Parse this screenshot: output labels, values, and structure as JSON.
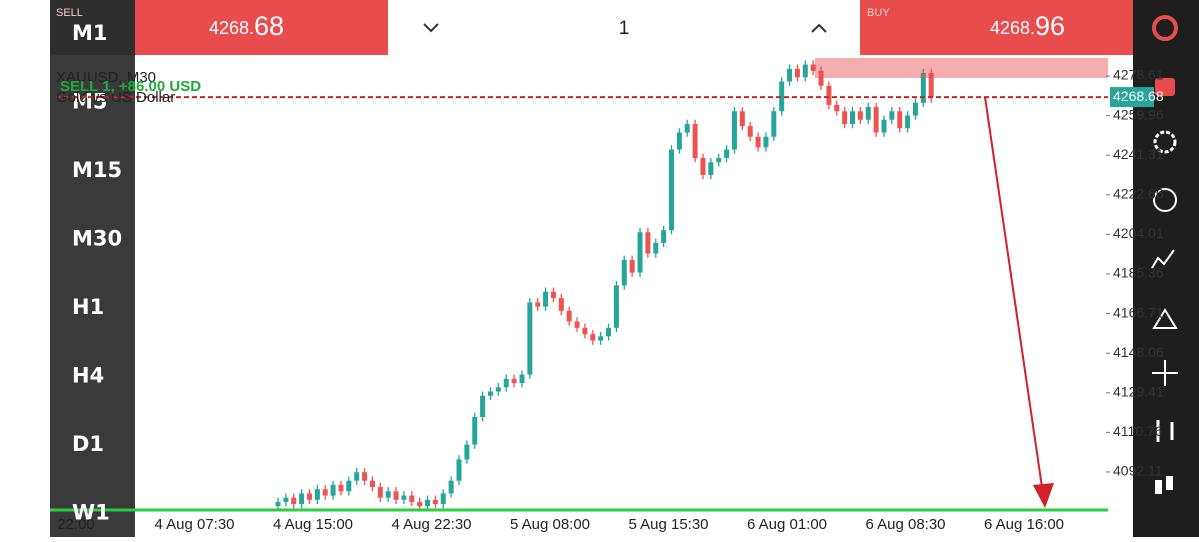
{
  "timeframes": [
    "M1",
    "M5",
    "M15",
    "M30",
    "H1",
    "H4",
    "D1",
    "W1"
  ],
  "sell": {
    "label": "SELL",
    "price_int": "4268.",
    "price_frac": "68"
  },
  "volume": "1",
  "buy": {
    "label": "BUY",
    "price_int": "4268.",
    "price_frac": "96"
  },
  "chart_data": {
    "type": "candlestick",
    "title": "XAUUSD, M30",
    "subtitle": "Gold vs US Dollar",
    "position_label": "SELL 1, +86.00 USD",
    "current_price": 4268.68,
    "current_price_label": "4268.68",
    "ylim": [
      4074.2,
      4288.5
    ],
    "yticks": [
      4278.61,
      4259.96,
      4241.31,
      4222.66,
      4204.01,
      4185.36,
      4166.71,
      4148.06,
      4129.41,
      4110.76,
      4092.11
    ],
    "xtick_labels": [
      "22:00",
      "4 Aug 07:30",
      "4 Aug 15:00",
      "4 Aug 22:30",
      "5 Aug 08:00",
      "5 Aug 15:30",
      "6 Aug 01:00",
      "6 Aug 08:30",
      "6 Aug 16:00"
    ],
    "up_color": "#26a69a",
    "down_color": "#ef5350",
    "candles": [
      [
        4076,
        4080,
        4074,
        4078
      ],
      [
        4078,
        4082,
        4076,
        4080
      ],
      [
        4080,
        4082,
        4075,
        4077
      ],
      [
        4077,
        4084,
        4075,
        4082
      ],
      [
        4082,
        4084,
        4077,
        4079
      ],
      [
        4079,
        4086,
        4077,
        4084
      ],
      [
        4084,
        4086,
        4079,
        4081
      ],
      [
        4081,
        4088,
        4079,
        4086
      ],
      [
        4086,
        4088,
        4081,
        4083
      ],
      [
        4083,
        4090,
        4081,
        4088
      ],
      [
        4088,
        4094,
        4086,
        4092
      ],
      [
        4092,
        4094,
        4086,
        4088
      ],
      [
        4088,
        4090,
        4083,
        4085
      ],
      [
        4085,
        4087,
        4078,
        4080
      ],
      [
        4080,
        4085,
        4078,
        4083
      ],
      [
        4083,
        4085,
        4077,
        4079
      ],
      [
        4079,
        4083,
        4077,
        4081
      ],
      [
        4081,
        4083,
        4076,
        4078
      ],
      [
        4078,
        4080,
        4074,
        4076
      ],
      [
        4076,
        4081,
        4074,
        4079
      ],
      [
        4079,
        4081,
        4075,
        4077
      ],
      [
        4077,
        4084,
        4075,
        4082
      ],
      [
        4082,
        4090,
        4080,
        4088
      ],
      [
        4088,
        4100,
        4086,
        4098
      ],
      [
        4098,
        4107,
        4096,
        4105
      ],
      [
        4105,
        4120,
        4103,
        4118
      ],
      [
        4118,
        4130,
        4116,
        4128
      ],
      [
        4128,
        4132,
        4126,
        4130
      ],
      [
        4130,
        4134,
        4128,
        4132
      ],
      [
        4132,
        4138,
        4130,
        4136
      ],
      [
        4136,
        4138,
        4132,
        4134
      ],
      [
        4134,
        4140,
        4132,
        4138
      ],
      [
        4138,
        4174,
        4136,
        4172
      ],
      [
        4172,
        4174,
        4168,
        4170
      ],
      [
        4170,
        4179,
        4168,
        4177
      ],
      [
        4177,
        4179,
        4172,
        4174
      ],
      [
        4174,
        4176,
        4166,
        4168
      ],
      [
        4168,
        4170,
        4161,
        4163
      ],
      [
        4163,
        4165,
        4158,
        4160
      ],
      [
        4160,
        4162,
        4155,
        4157
      ],
      [
        4157,
        4159,
        4152,
        4154
      ],
      [
        4154,
        4158,
        4152,
        4156
      ],
      [
        4156,
        4162,
        4154,
        4160
      ],
      [
        4160,
        4182,
        4158,
        4180
      ],
      [
        4180,
        4194,
        4178,
        4192
      ],
      [
        4192,
        4194,
        4184,
        4186
      ],
      [
        4186,
        4207,
        4184,
        4205
      ],
      [
        4205,
        4207,
        4193,
        4195
      ],
      [
        4195,
        4202,
        4193,
        4200
      ],
      [
        4200,
        4208,
        4198,
        4206
      ],
      [
        4206,
        4246,
        4204,
        4244
      ],
      [
        4244,
        4254,
        4242,
        4252
      ],
      [
        4252,
        4258,
        4250,
        4256
      ],
      [
        4256,
        4258,
        4238,
        4240
      ],
      [
        4240,
        4242,
        4230,
        4232
      ],
      [
        4232,
        4240,
        4230,
        4238
      ],
      [
        4238,
        4242,
        4236,
        4240
      ],
      [
        4240,
        4246,
        4238,
        4244
      ],
      [
        4244,
        4264,
        4242,
        4262
      ],
      [
        4262,
        4264,
        4253,
        4255
      ],
      [
        4255,
        4257,
        4248,
        4250
      ],
      [
        4250,
        4252,
        4243,
        4245
      ],
      [
        4245,
        4252,
        4243,
        4250
      ],
      [
        4250,
        4264,
        4248,
        4262
      ],
      [
        4262,
        4278,
        4260,
        4276
      ],
      [
        4276,
        4284,
        4274,
        4282
      ],
      [
        4282,
        4284,
        4276,
        4278
      ],
      [
        4278,
        4286,
        4276,
        4284
      ],
      [
        4284,
        4286,
        4279,
        4281
      ],
      [
        4281,
        4283,
        4272,
        4274
      ],
      [
        4274,
        4276,
        4263,
        4265
      ],
      [
        4265,
        4267,
        4260,
        4262
      ],
      [
        4262,
        4264,
        4254,
        4256
      ],
      [
        4256,
        4264,
        4254,
        4262
      ],
      [
        4262,
        4264,
        4256,
        4258
      ],
      [
        4258,
        4266,
        4256,
        4264
      ],
      [
        4264,
        4266,
        4250,
        4252
      ],
      [
        4252,
        4260,
        4250,
        4258
      ],
      [
        4258,
        4264,
        4256,
        4262
      ],
      [
        4262,
        4264,
        4252,
        4254
      ],
      [
        4254,
        4262,
        4252,
        4260
      ],
      [
        4260,
        4268,
        4258,
        4266
      ],
      [
        4266,
        4282,
        4264,
        4280
      ],
      [
        4280,
        4282,
        4266,
        4268.68
      ]
    ]
  }
}
